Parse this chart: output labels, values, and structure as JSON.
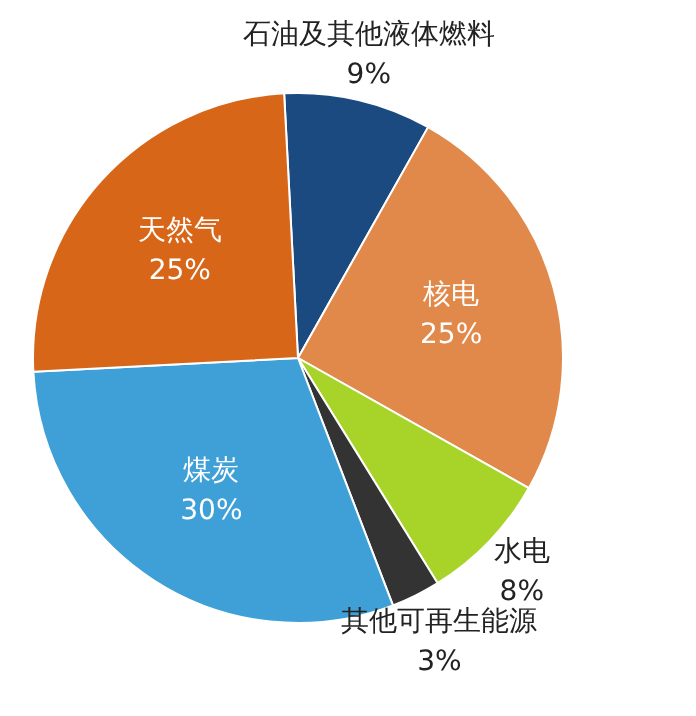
{
  "chart_data": {
    "type": "pie",
    "categories": [
      "石油及其他液体燃料",
      "核电",
      "水电",
      "其他可再生能源",
      "煤炭",
      "天然气"
    ],
    "values": [
      9,
      25,
      8,
      3,
      30,
      25
    ],
    "colors": [
      "#1a4a80",
      "#e0894a",
      "#a8d42a",
      "#333333",
      "#3fa0d8",
      "#d86618"
    ],
    "value_labels": [
      "9%",
      "25%",
      "8%",
      "3%",
      "30%",
      "25%"
    ],
    "legend": false
  }
}
